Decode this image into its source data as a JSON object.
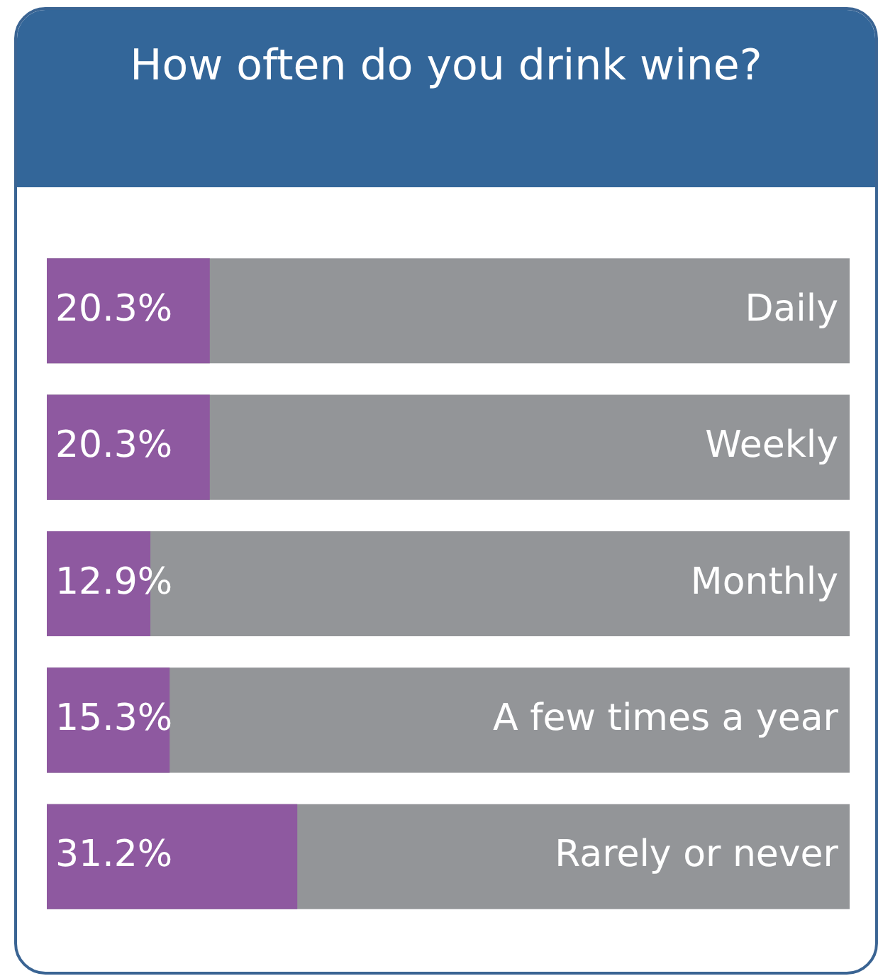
{
  "chart_data": {
    "type": "bar",
    "orientation": "horizontal",
    "title": "How often do you drink wine?",
    "categories": [
      "Daily",
      "Weekly",
      "Monthly",
      "A few times a year",
      "Rarely or never"
    ],
    "values": [
      20.3,
      20.3,
      12.9,
      15.3,
      31.2
    ],
    "value_labels": [
      "20.3%",
      "20.3%",
      "12.9%",
      "15.3%",
      "31.2%"
    ],
    "color": "#8e59a0",
    "xlim": [
      0,
      100
    ]
  }
}
